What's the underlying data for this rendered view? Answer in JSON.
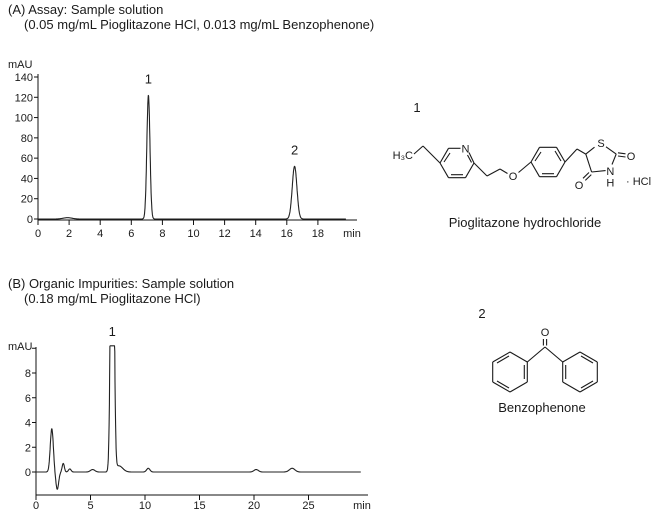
{
  "figure": {
    "panel_a_label": "(A)",
    "panel_b_label": "(B)"
  },
  "chart_data": [
    {
      "id": "chromatogram-a",
      "type": "line",
      "title": "(A) Assay: Sample solution",
      "subtitle": "(0.05 mg/mL Pioglitazone HCl, 0.013 mg/mL Benzophenone)",
      "xlabel": "min",
      "ylabel": "mAU",
      "xlim": [
        0,
        19.8
      ],
      "ylim": [
        0,
        140
      ],
      "grid": false,
      "legend": "none",
      "xticks": [
        0,
        2,
        4,
        6,
        8,
        10,
        12,
        14,
        16,
        18
      ],
      "yticks": [
        0,
        20,
        40,
        60,
        80,
        100,
        120,
        140
      ],
      "peaks": [
        {
          "label": "1",
          "compound": "Pioglitazone hydrochloride",
          "rt_min": 7.1,
          "height_mAU": 122,
          "sigma_min": 0.1
        },
        {
          "label": "2",
          "compound": "Benzophenone",
          "rt_min": 16.5,
          "height_mAU": 52,
          "sigma_min": 0.15
        }
      ],
      "baseline_features": [
        {
          "rt_min": 1.9,
          "height_mAU": 1.3,
          "sigma_min": 0.28
        }
      ]
    },
    {
      "id": "chromatogram-b",
      "type": "line",
      "title": "(B) Organic Impurities: Sample solution",
      "subtitle": "(0.18 mg/mL Pioglitazone HCl)",
      "xlabel": "min",
      "ylabel": "mAU",
      "xlim": [
        0,
        29.8
      ],
      "ylim": [
        -1.9,
        10.2
      ],
      "grid": false,
      "legend": "none",
      "xticks": [
        0,
        5,
        10,
        15,
        20,
        25
      ],
      "yticks": [
        0,
        2,
        4,
        6,
        8
      ],
      "peaks": [
        {
          "label": "1",
          "compound": "Pioglitazone",
          "rt_min": 7.0,
          "height_mAU": 35,
          "sigma_min": 0.14,
          "clipped": true,
          "clipped_at_mAU": 10.2,
          "note": "peak off-scale, flat-topped at top of plot"
        }
      ],
      "baseline_features": [
        {
          "rt_min": 1.45,
          "height_mAU": 3.5,
          "sigma_min": 0.14
        },
        {
          "rt_min": 1.95,
          "height_mAU": -1.4,
          "sigma_min": 0.13
        },
        {
          "rt_min": 2.5,
          "height_mAU": 0.7,
          "sigma_min": 0.1
        },
        {
          "rt_min": 3.1,
          "height_mAU": 0.25,
          "sigma_min": 0.12
        },
        {
          "rt_min": 5.2,
          "height_mAU": 0.2,
          "sigma_min": 0.2
        },
        {
          "rt_min": 7.6,
          "height_mAU": 0.5,
          "sigma_min": 0.35
        },
        {
          "rt_min": 10.3,
          "height_mAU": 0.3,
          "sigma_min": 0.15
        },
        {
          "rt_min": 20.2,
          "height_mAU": 0.2,
          "sigma_min": 0.2
        },
        {
          "rt_min": 23.5,
          "height_mAU": 0.3,
          "sigma_min": 0.25
        }
      ]
    }
  ],
  "structures": {
    "pioglitazone": {
      "index_label": "1",
      "name": "Pioglitazone hydrochloride",
      "atom_labels": {
        "h3c": "H₃C",
        "pyridine_n": "N",
        "ether_o": "O",
        "s": "S",
        "carbonyl_o_right": "O",
        "ring_n": "N",
        "nh_h": "H",
        "carbonyl_o_left": "O",
        "salt": "· HCl"
      }
    },
    "benzophenone": {
      "index_label": "2",
      "name": "Benzophenone",
      "atom_labels": {
        "carbonyl_o": "O"
      }
    }
  },
  "colors": {
    "text": "#1a1a1a",
    "axis": "#111111",
    "trace": "#222222",
    "background": "#ffffff"
  }
}
